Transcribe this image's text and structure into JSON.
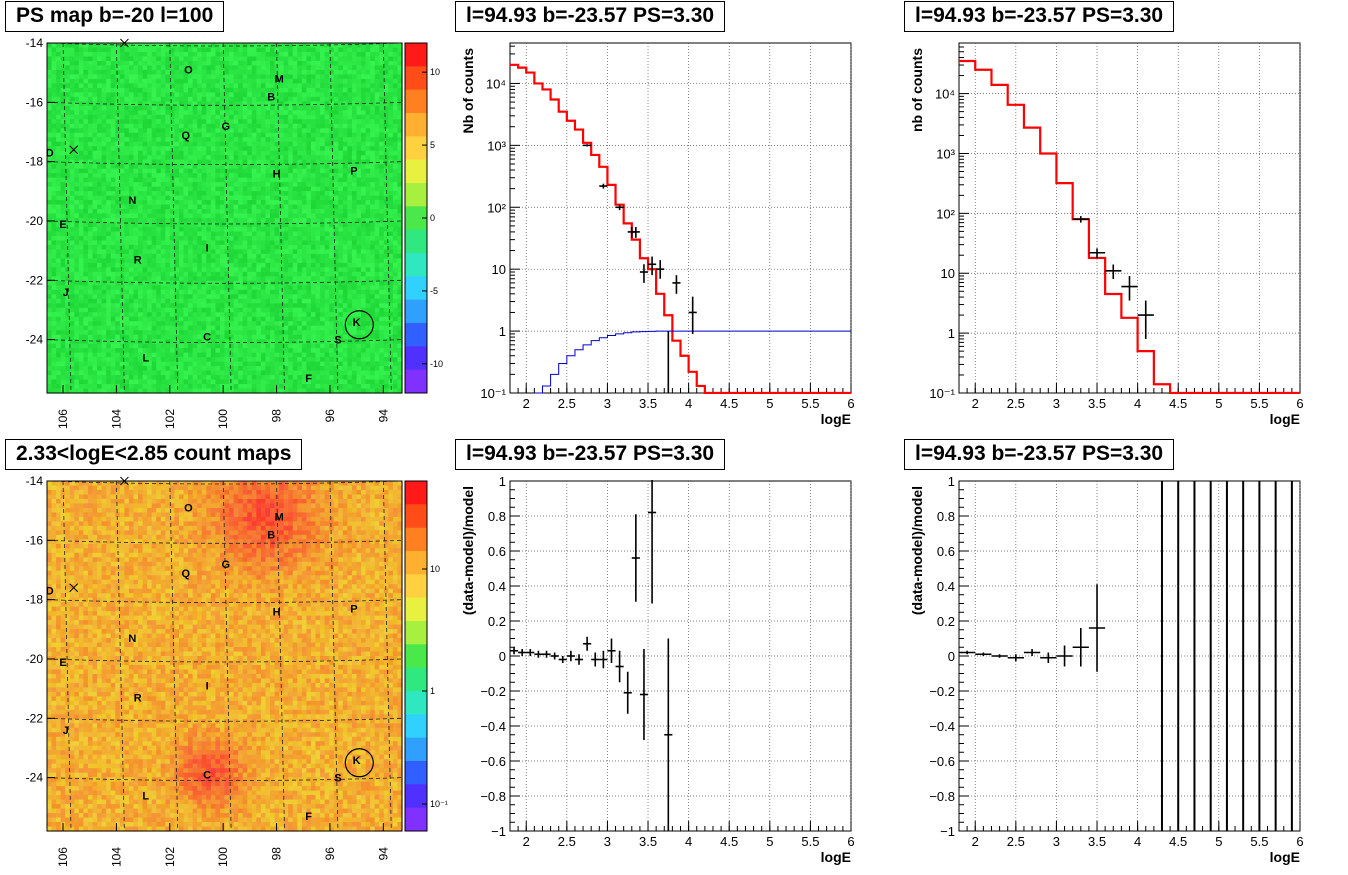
{
  "page": {
    "titles": {
      "ps_map": "PS map b=-20 l=100",
      "count_map": "2.33<logE<2.85 count maps",
      "spec_left": "l=94.93 b=-23.57 PS=3.30",
      "spec_right": "l=94.93 b=-23.57 PS=3.30",
      "res_left": "l=94.93 b=-23.57 PS=3.30",
      "res_right": "l=94.93 b=-23.57 PS=3.30"
    },
    "colors": {
      "model": "#ff0000",
      "background": "#0000cc",
      "data": "#000000",
      "map_ps": "#2ee64a",
      "map_counts": "#f2c23a"
    }
  },
  "chart_data": [
    {
      "id": "ps_map",
      "type": "heatmap",
      "title": "PS map b=-20 l=100",
      "xlim": [
        106.6,
        93.3
      ],
      "ylim": [
        -25.8,
        -14
      ],
      "xticks": [
        "106",
        "104",
        "102",
        "100",
        "98",
        "96",
        "94"
      ],
      "yticks": [
        "-14",
        "-16",
        "-18",
        "-20",
        "-22",
        "-24"
      ],
      "colorbar": {
        "scale": "linear",
        "range": [
          -12,
          12
        ],
        "ticks": [
          "10",
          "5",
          "0",
          "-5",
          "-10"
        ]
      },
      "sources": [
        {
          "label": "O",
          "l": 101.3,
          "b": -14.9
        },
        {
          "label": "M",
          "l": 97.9,
          "b": -15.2
        },
        {
          "label": "B",
          "l": 98.2,
          "b": -15.8
        },
        {
          "label": "Q",
          "l": 101.4,
          "b": -17.1
        },
        {
          "label": "G",
          "l": 99.9,
          "b": -16.8
        },
        {
          "label": "D",
          "l": 106.5,
          "b": -17.7
        },
        {
          "label": "H",
          "l": 98,
          "b": -18.4
        },
        {
          "label": "P",
          "l": 95.1,
          "b": -18.3
        },
        {
          "label": "N",
          "l": 103.4,
          "b": -19.3
        },
        {
          "label": "E",
          "l": 106,
          "b": -20.1
        },
        {
          "label": "I",
          "l": 100.6,
          "b": -20.9
        },
        {
          "label": "R",
          "l": 103.2,
          "b": -21.3
        },
        {
          "label": "J",
          "l": 105.9,
          "b": -22.4
        },
        {
          "label": "K",
          "l": 95,
          "b": -23.4
        },
        {
          "label": "C",
          "l": 100.6,
          "b": -23.9
        },
        {
          "label": "S",
          "l": 95.7,
          "b": -24
        },
        {
          "label": "L",
          "l": 102.9,
          "b": -24.6
        },
        {
          "label": "F",
          "l": 96.8,
          "b": -25.3
        }
      ],
      "crosses": [
        {
          "l": 103.7,
          "b": -14
        },
        {
          "l": 105.6,
          "b": -17.6
        }
      ],
      "circle": {
        "l": 94.9,
        "b": -23.5
      }
    },
    {
      "id": "count_map",
      "type": "heatmap",
      "title": "2.33<logE<2.85 count maps",
      "xlim": [
        106.6,
        93.3
      ],
      "ylim": [
        -25.8,
        -14
      ],
      "xticks": [
        "106",
        "104",
        "102",
        "100",
        "98",
        "96",
        "94"
      ],
      "yticks": [
        "-14",
        "-16",
        "-18",
        "-20",
        "-22",
        "-24"
      ],
      "colorbar": {
        "scale": "log",
        "ticks": [
          "10",
          "1",
          "10⁻¹"
        ]
      }
    },
    {
      "id": "spec_left",
      "type": "line",
      "title": "l=94.93 b=-23.57 PS=3.30",
      "xlabel": "logE",
      "ylabel": "Nb of counts",
      "yscale": "log",
      "xlim": [
        1.8,
        6
      ],
      "ylim": [
        0.1,
        45000
      ],
      "xticks": [
        "2",
        "2.5",
        "3",
        "3.5",
        "4",
        "4.5",
        "5",
        "5.5",
        "6"
      ],
      "yticks": [
        "10⁴",
        "10³",
        "10²",
        "10",
        "1",
        "10⁻¹"
      ],
      "binwidth": 0.1,
      "series": [
        {
          "role": "model",
          "x": [
            1.8,
            1.9,
            2.0,
            2.1,
            2.2,
            2.3,
            2.4,
            2.5,
            2.6,
            2.7,
            2.8,
            2.9,
            3.0,
            3.1,
            3.2,
            3.3,
            3.4,
            3.5,
            3.6,
            3.7,
            3.8,
            3.9,
            4.0,
            4.1,
            4.2,
            4.3,
            4.4,
            4.5,
            4.6,
            4.7,
            4.8,
            4.9,
            5.0,
            5.1,
            5.2,
            5.3,
            5.4,
            5.5,
            5.6,
            5.7,
            5.8,
            5.9
          ],
          "values": [
            20000,
            18000,
            15000,
            10000,
            8000,
            5500,
            3500,
            2500,
            1800,
            1100,
            700,
            450,
            230,
            110,
            55,
            30,
            15,
            10,
            4,
            1.8,
            0.7,
            0.4,
            0.22,
            0.13,
            0.1,
            0.1,
            0.1,
            0.1,
            0.1,
            0.1,
            0.1,
            0.1,
            0.1,
            0.1,
            0.1,
            0.1,
            0.1,
            0.1,
            0.1,
            0.1,
            0.1,
            0.1
          ]
        },
        {
          "role": "background",
          "x": [
            2.1,
            2.2,
            2.3,
            2.4,
            2.5,
            2.6,
            2.7,
            2.8,
            2.9,
            3.0,
            3.1,
            3.2,
            3.3,
            3.4,
            3.5,
            3.6,
            3.7,
            3.8,
            6.0
          ],
          "values": [
            0.1,
            0.13,
            0.2,
            0.3,
            0.4,
            0.5,
            0.6,
            0.7,
            0.78,
            0.85,
            0.9,
            0.94,
            0.97,
            0.98,
            0.99,
            1,
            1,
            1,
            1
          ]
        },
        {
          "role": "data",
          "x": [
            2.75,
            2.95,
            3.15,
            3.3,
            3.35,
            3.45,
            3.55,
            3.65,
            3.85,
            4.05
          ],
          "values": [
            1000,
            220,
            100,
            40,
            40,
            9,
            12,
            10,
            6,
            2
          ],
          "errors": [
            [
              960,
              1040
            ],
            [
              200,
              240
            ],
            [
              90,
              110
            ],
            [
              32,
              48
            ],
            [
              32,
              48
            ],
            [
              6,
              12
            ],
            [
              8,
              16
            ],
            [
              7,
              14
            ],
            [
              4,
              8
            ],
            [
              0.9,
              3.6
            ]
          ]
        }
      ],
      "extra_lines": [
        {
          "x": 3.75,
          "from": 0.1,
          "to": 1
        }
      ]
    },
    {
      "id": "spec_right",
      "type": "line",
      "title": "l=94.93 b=-23.57 PS=3.30",
      "xlabel": "logE",
      "ylabel": "nb of counts",
      "yscale": "log",
      "xlim": [
        1.8,
        6
      ],
      "ylim": [
        0.1,
        70000
      ],
      "xticks": [
        "2",
        "2.5",
        "3",
        "3.5",
        "4",
        "4.5",
        "5",
        "5.5",
        "6"
      ],
      "yticks": [
        "10⁴",
        "10³",
        "10²",
        "10",
        "1",
        "10⁻¹"
      ],
      "binwidth": 0.2,
      "series": [
        {
          "role": "model",
          "x": [
            1.8,
            2.0,
            2.2,
            2.4,
            2.6,
            2.8,
            3.0,
            3.2,
            3.4,
            3.6,
            3.8,
            4.0,
            4.2,
            4.4,
            4.6,
            4.8,
            5.0,
            5.2,
            5.4,
            5.6,
            5.8
          ],
          "values": [
            35000,
            25000,
            14000,
            6500,
            2700,
            1000,
            320,
            80,
            18,
            4.5,
            1.8,
            0.5,
            0.14,
            0.1,
            0.1,
            0.1,
            0.1,
            0.1,
            0.1,
            0.1,
            0.1
          ]
        },
        {
          "role": "data",
          "x": [
            3.3,
            3.5,
            3.7,
            3.9,
            4.1
          ],
          "values": [
            80,
            22,
            11,
            6,
            2
          ],
          "errors": [
            [
              70,
              90
            ],
            [
              18,
              26
            ],
            [
              8,
              14
            ],
            [
              3.5,
              9
            ],
            [
              0.8,
              3.5
            ]
          ]
        }
      ]
    },
    {
      "id": "res_left",
      "type": "scatter",
      "title": "l=94.93 b=-23.57 PS=3.30",
      "xlabel": "logE",
      "ylabel": "(data-model)/model",
      "xlim": [
        1.8,
        6
      ],
      "ylim": [
        -1,
        1
      ],
      "xticks": [
        "2",
        "2.5",
        "3",
        "3.5",
        "4",
        "4.5",
        "5",
        "5.5",
        "6"
      ],
      "yticks": [
        "1",
        "0.8",
        "0.6",
        "0.4",
        "0.2",
        "0",
        "−0.2",
        "−0.4",
        "−0.6",
        "−0.8",
        "−1"
      ],
      "binwidth": 0.1,
      "points": [
        {
          "x": 1.85,
          "y": 0.03,
          "e": 0.02
        },
        {
          "x": 1.95,
          "y": 0.02,
          "e": 0.02
        },
        {
          "x": 2.05,
          "y": 0.02,
          "e": 0.02
        },
        {
          "x": 2.15,
          "y": 0.01,
          "e": 0.02
        },
        {
          "x": 2.25,
          "y": 0.01,
          "e": 0.02
        },
        {
          "x": 2.35,
          "y": 0,
          "e": 0.02
        },
        {
          "x": 2.45,
          "y": -0.02,
          "e": 0.02
        },
        {
          "x": 2.55,
          "y": 0,
          "e": 0.03
        },
        {
          "x": 2.65,
          "y": -0.02,
          "e": 0.03
        },
        {
          "x": 2.75,
          "y": 0.07,
          "e": 0.04
        },
        {
          "x": 2.85,
          "y": -0.02,
          "e": 0.04
        },
        {
          "x": 2.95,
          "y": -0.02,
          "e": 0.05
        },
        {
          "x": 3.05,
          "y": 0.03,
          "e": 0.07
        },
        {
          "x": 3.15,
          "y": -0.06,
          "e": 0.09
        },
        {
          "x": 3.25,
          "y": -0.21,
          "e": 0.12
        },
        {
          "x": 3.35,
          "y": 0.56,
          "e": 0.25
        },
        {
          "x": 3.45,
          "y": -0.22,
          "e": 0.26
        },
        {
          "x": 3.55,
          "y": 0.82,
          "e": 0.52
        },
        {
          "x": 3.75,
          "y": -0.45,
          "e": 0.55
        }
      ]
    },
    {
      "id": "res_right",
      "type": "scatter",
      "title": "l=94.93 b=-23.57 PS=3.30",
      "xlabel": "logE",
      "ylabel": "(data-model)/model",
      "xlim": [
        1.8,
        6
      ],
      "ylim": [
        -1,
        1
      ],
      "xticks": [
        "2",
        "2.5",
        "3",
        "3.5",
        "4",
        "4.5",
        "5",
        "5.5",
        "6"
      ],
      "yticks": [
        "1",
        "0.8",
        "0.6",
        "0.4",
        "0.2",
        "0",
        "−0.2",
        "−0.4",
        "−0.6",
        "−0.8",
        "−1"
      ],
      "binwidth": 0.2,
      "points": [
        {
          "x": 1.9,
          "y": 0.02,
          "e": 0.01
        },
        {
          "x": 2.1,
          "y": 0.01,
          "e": 0.01
        },
        {
          "x": 2.3,
          "y": 0,
          "e": 0.01
        },
        {
          "x": 2.5,
          "y": -0.01,
          "e": 0.02
        },
        {
          "x": 2.7,
          "y": 0.02,
          "e": 0.02
        },
        {
          "x": 2.9,
          "y": -0.01,
          "e": 0.03
        },
        {
          "x": 3.1,
          "y": 0,
          "e": 0.06
        },
        {
          "x": 3.3,
          "y": 0.05,
          "e": 0.11
        },
        {
          "x": 3.5,
          "y": 0.16,
          "e": 0.25
        }
      ],
      "full_bars_x": [
        4.3,
        4.5,
        4.7,
        4.9,
        5.1,
        5.3,
        5.5,
        5.7,
        5.9
      ]
    }
  ]
}
